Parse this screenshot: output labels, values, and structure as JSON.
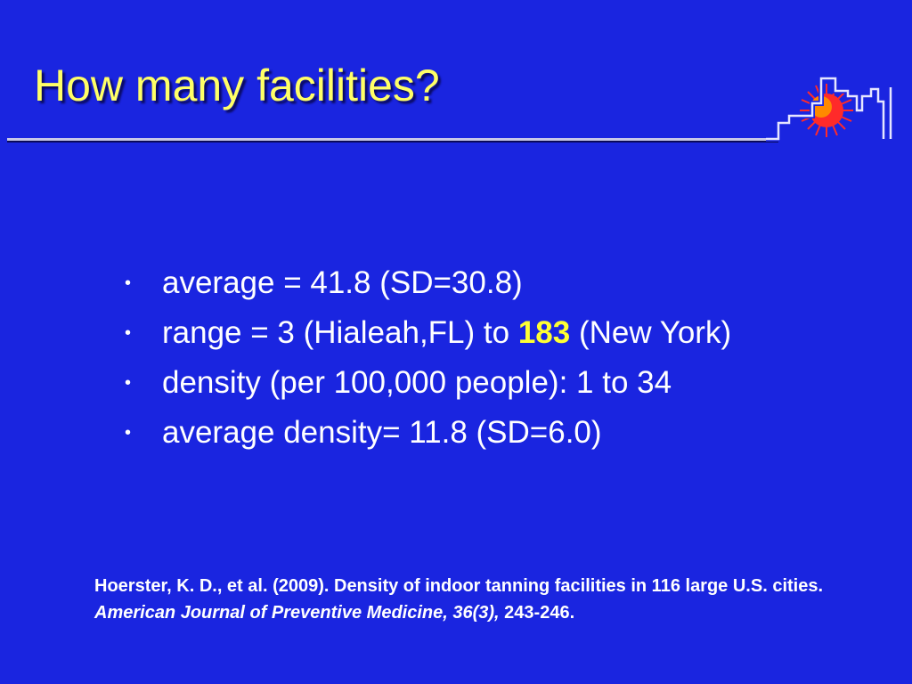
{
  "slide": {
    "title": "How many facilities?",
    "bullets": [
      {
        "marker": "•",
        "text": "average = 41.8 (SD=30.8)"
      },
      {
        "marker": "•",
        "pre": "range = 3 (Hialeah,FL) to ",
        "highlight": "183",
        "post": " (New York)"
      },
      {
        "marker": "•",
        "text": "density (per 100,000 people): 1 to 34"
      },
      {
        "marker": "•",
        "text": "average density= 11.8 (SD=6.0)"
      }
    ],
    "citation": {
      "authors": "Hoerster, K. D., et al. (2009). Density of indoor tanning facilities in 116 large U.S. cities. ",
      "journal": "American Journal of Preventive Medicine, 36(3),",
      "pages": " 243-246."
    },
    "logo_icon": "city-skyline-sun-icon",
    "colors": {
      "background": "#1a25e0",
      "title": "#ffff66",
      "highlight": "#ffff33",
      "sun_outer": "#ff2a2a",
      "sun_inner": "#ff8a00"
    }
  }
}
